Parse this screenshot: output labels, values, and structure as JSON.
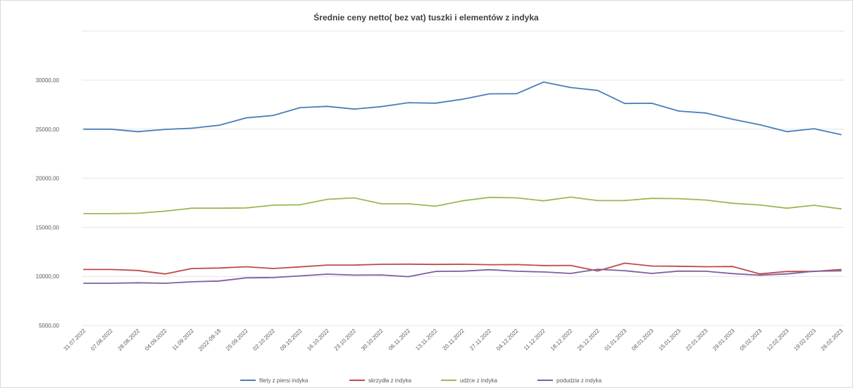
{
  "chart_data": {
    "type": "line",
    "title": "Średnie ceny netto( bez vat) tuszki i elementów z indyka",
    "xlabel": "",
    "ylabel": "",
    "ylim": [
      5000,
      35000
    ],
    "y_ticks": [
      "5000,00",
      "10000,00",
      "15000,00",
      "20000,00",
      "25000,00",
      "30000,00"
    ],
    "y_tick_values": [
      5000,
      10000,
      15000,
      20000,
      25000,
      30000
    ],
    "grid": true,
    "legend_position": "bottom",
    "categories": [
      "31.07.2022",
      "07.08.2022",
      "28.08.2022",
      "04.09.2022",
      "11.09.2022",
      "2022-09-18",
      "25.09.2022",
      "02.10.2022",
      "09.10.2022",
      "16.10.2022",
      "23.10.2022",
      "30.10.2022",
      "06.11.2022",
      "13.11.2022",
      "20.11.2022",
      "27.11.2022",
      "04.12.2022",
      "11.12.2022",
      "18.12.2022",
      "25.12.2022",
      "01.01.2023",
      "08.01.2023",
      "15.01.2023",
      "22.01.2023",
      "29.01.2023",
      "05.02.2023",
      "12.02.2023",
      "19.02.2023",
      "26.02.2023"
    ],
    "series": [
      {
        "name": "filety z piersi indyka",
        "color": "#4a7ebb",
        "values": [
          25000,
          25000,
          24750,
          24980,
          25100,
          25400,
          26150,
          26400,
          27200,
          27330,
          27050,
          27300,
          27700,
          27650,
          28050,
          28600,
          28620,
          29800,
          29250,
          28950,
          27620,
          27640,
          26850,
          26650,
          26000,
          25450,
          24750,
          25050,
          24450
        ]
      },
      {
        "name": "skrzydła z indyka",
        "color": "#be4b48",
        "values": [
          10700,
          10700,
          10600,
          10250,
          10800,
          10850,
          10980,
          10800,
          10970,
          11150,
          11150,
          11230,
          11250,
          11220,
          11240,
          11190,
          11200,
          11100,
          11120,
          10550,
          11350,
          11050,
          11030,
          10980,
          11000,
          10250,
          10500,
          10500,
          10700
        ]
      },
      {
        "name": "udźce z indyka",
        "color": "#98b954",
        "values": [
          16400,
          16400,
          16430,
          16650,
          16950,
          16950,
          16980,
          17260,
          17300,
          17850,
          18000,
          17400,
          17400,
          17150,
          17700,
          18050,
          18000,
          17700,
          18080,
          17720,
          17730,
          17950,
          17920,
          17780,
          17450,
          17280,
          16950,
          17250,
          16880
        ]
      },
      {
        "name": "podudzia z indyka",
        "color": "#7d60a0",
        "values": [
          9300,
          9300,
          9350,
          9300,
          9450,
          9530,
          9850,
          9880,
          10050,
          10230,
          10130,
          10150,
          9970,
          10500,
          10530,
          10680,
          10520,
          10450,
          10300,
          10720,
          10580,
          10300,
          10540,
          10520,
          10280,
          10120,
          10250,
          10520,
          10560
        ]
      }
    ]
  }
}
